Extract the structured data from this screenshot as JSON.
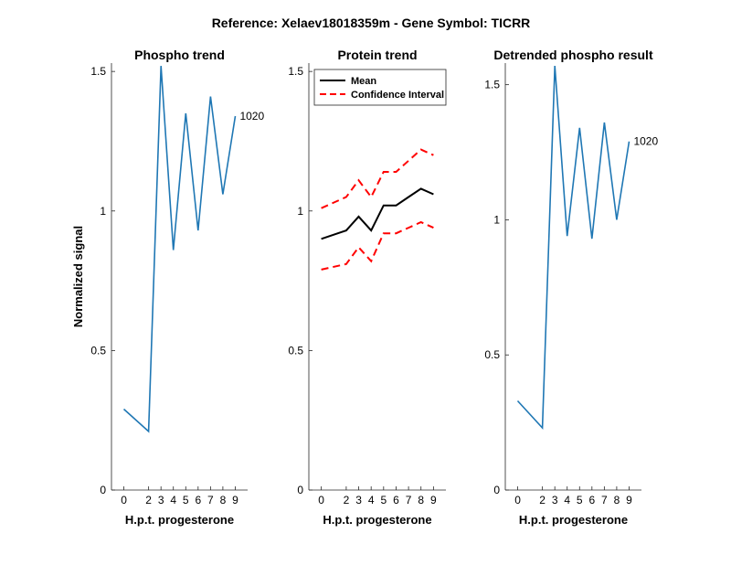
{
  "figure": {
    "suptitle": "Reference:  Xelaev18018359m - Gene Symbol:  TICRR"
  },
  "chart_data": [
    {
      "type": "line",
      "title": "Phospho trend",
      "xlabel": "H.p.t. progesterone",
      "ylabel": "Normalized signal",
      "x": [
        0,
        2,
        3,
        4,
        5,
        6,
        7,
        8,
        9
      ],
      "xticks": [
        "0",
        "2",
        "3",
        "4",
        "5",
        "6",
        "7",
        "8",
        "9"
      ],
      "ylim": [
        0,
        1.53
      ],
      "yticks": [
        "0",
        "0.5",
        "1",
        "1.5"
      ],
      "series": [
        {
          "values": [
            0.29,
            0.21,
            1.52,
            0.86,
            1.35,
            0.93,
            1.41,
            1.06,
            1.34
          ],
          "color": "#1f77b4",
          "style": "solid"
        }
      ],
      "annotation": "1020"
    },
    {
      "type": "line",
      "title": "Protein trend",
      "xlabel": "H.p.t. progesterone",
      "ylabel": "",
      "x": [
        0,
        2,
        3,
        4,
        5,
        6,
        7,
        8,
        9
      ],
      "xticks": [
        "0",
        "2",
        "3",
        "4",
        "5",
        "6",
        "7",
        "8",
        "9"
      ],
      "ylim": [
        0,
        1.53
      ],
      "yticks": [
        "0",
        "0.5",
        "1",
        "1.5"
      ],
      "series": [
        {
          "name": "Mean",
          "values": [
            0.9,
            0.93,
            0.98,
            0.93,
            1.02,
            1.02,
            1.05,
            1.08,
            1.06
          ],
          "color": "#000000",
          "style": "solid"
        },
        {
          "name": "Confidence Interval",
          "values": [
            1.01,
            1.05,
            1.11,
            1.05,
            1.14,
            1.14,
            1.18,
            1.22,
            1.2
          ],
          "color": "#ff0000",
          "style": "dashed"
        },
        {
          "values": [
            0.79,
            0.81,
            0.87,
            0.82,
            0.92,
            0.92,
            0.94,
            0.96,
            0.94
          ],
          "color": "#ff0000",
          "style": "dashed"
        }
      ],
      "legend": {
        "placement": "top-left",
        "entries": [
          "Mean",
          "Confidence Interval"
        ]
      }
    },
    {
      "type": "line",
      "title": "Detrended phospho result",
      "xlabel": "H.p.t. progesterone",
      "ylabel": "",
      "x": [
        0,
        2,
        3,
        4,
        5,
        6,
        7,
        8,
        9
      ],
      "xticks": [
        "0",
        "2",
        "3",
        "4",
        "5",
        "6",
        "7",
        "8",
        "9"
      ],
      "ylim": [
        0,
        1.58
      ],
      "yticks": [
        "0",
        "0.5",
        "1",
        "1.5"
      ],
      "series": [
        {
          "values": [
            0.33,
            0.23,
            1.57,
            0.94,
            1.34,
            0.93,
            1.36,
            1.0,
            1.29
          ],
          "color": "#1f77b4",
          "style": "solid"
        }
      ],
      "annotation": "1020"
    }
  ]
}
